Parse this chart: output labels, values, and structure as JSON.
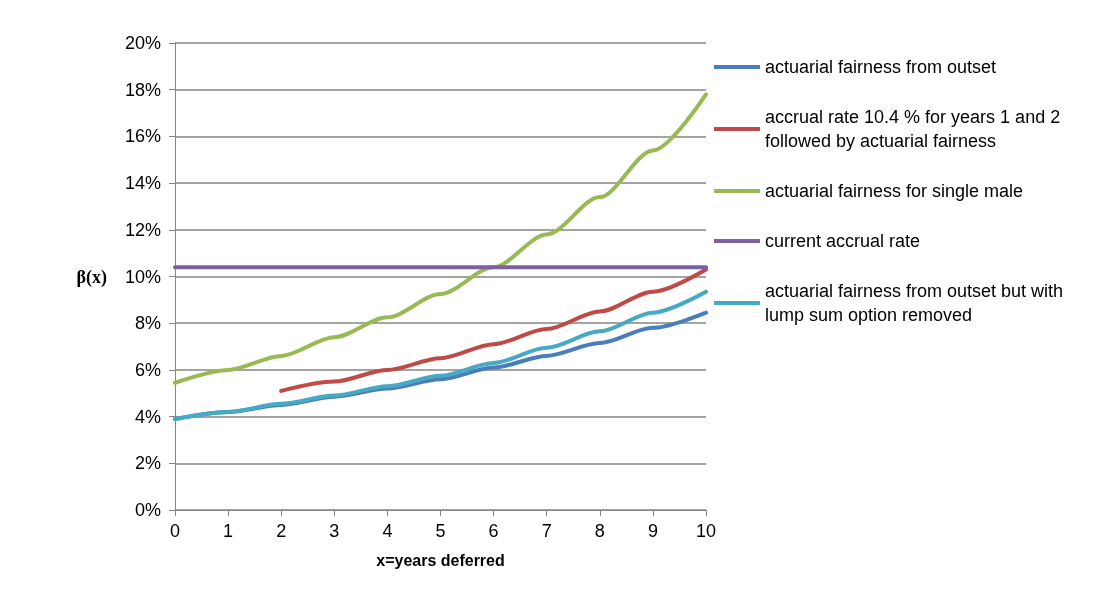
{
  "chart_data": {
    "type": "line",
    "xlabel": "x=years deferred",
    "ylabel": "β(x)",
    "x": [
      0,
      1,
      2,
      3,
      4,
      5,
      6,
      7,
      8,
      9,
      10
    ],
    "xlim": [
      0,
      10
    ],
    "xticks": [
      0,
      1,
      2,
      3,
      4,
      5,
      6,
      7,
      8,
      9,
      10
    ],
    "ylim": [
      0,
      20
    ],
    "yticks": [
      {
        "value": 0,
        "label": "0%"
      },
      {
        "value": 2,
        "label": "2%"
      },
      {
        "value": 4,
        "label": "4%"
      },
      {
        "value": 6,
        "label": "6%"
      },
      {
        "value": 8,
        "label": "8%"
      },
      {
        "value": 10,
        "label": "10%"
      },
      {
        "value": 12,
        "label": "12%"
      },
      {
        "value": 14,
        "label": "14%"
      },
      {
        "value": 16,
        "label": "16%"
      },
      {
        "value": 18,
        "label": "18%"
      },
      {
        "value": 20,
        "label": "20%"
      }
    ],
    "grid": "y",
    "legend": "right",
    "marker": "none",
    "line_style": "solid",
    "series": [
      {
        "name": "actuarial fairness from outset",
        "color": "#4a7ebb",
        "values": [
          3.9,
          4.2,
          4.5,
          4.85,
          5.2,
          5.6,
          6.1,
          6.6,
          7.15,
          7.8,
          8.45
        ]
      },
      {
        "name": "accrual rate 10.4 % for years 1 and 2 followed by actuarial fairness",
        "color": "#be4b48",
        "x": [
          2,
          3,
          4,
          5,
          6,
          7,
          8,
          9,
          10
        ],
        "values": [
          5.1,
          5.5,
          6.0,
          6.5,
          7.1,
          7.75,
          8.5,
          9.35,
          10.3
        ]
      },
      {
        "name": "actuarial fairness for single male",
        "color": "#98b954",
        "values": [
          5.45,
          6.0,
          6.6,
          7.4,
          8.25,
          9.25,
          10.4,
          11.8,
          13.4,
          15.4,
          17.8
        ]
      },
      {
        "name": "current accrual rate",
        "color": "#7d60a0",
        "values": [
          10.4,
          10.4,
          10.4,
          10.4,
          10.4,
          10.4,
          10.4,
          10.4,
          10.4,
          10.4,
          10.4
        ]
      },
      {
        "name": "actuarial fairness from outset but with lump sum option removed",
        "color": "#46aac5",
        "values": [
          3.9,
          4.2,
          4.55,
          4.9,
          5.3,
          5.75,
          6.3,
          6.95,
          7.65,
          8.45,
          9.35
        ]
      }
    ]
  }
}
